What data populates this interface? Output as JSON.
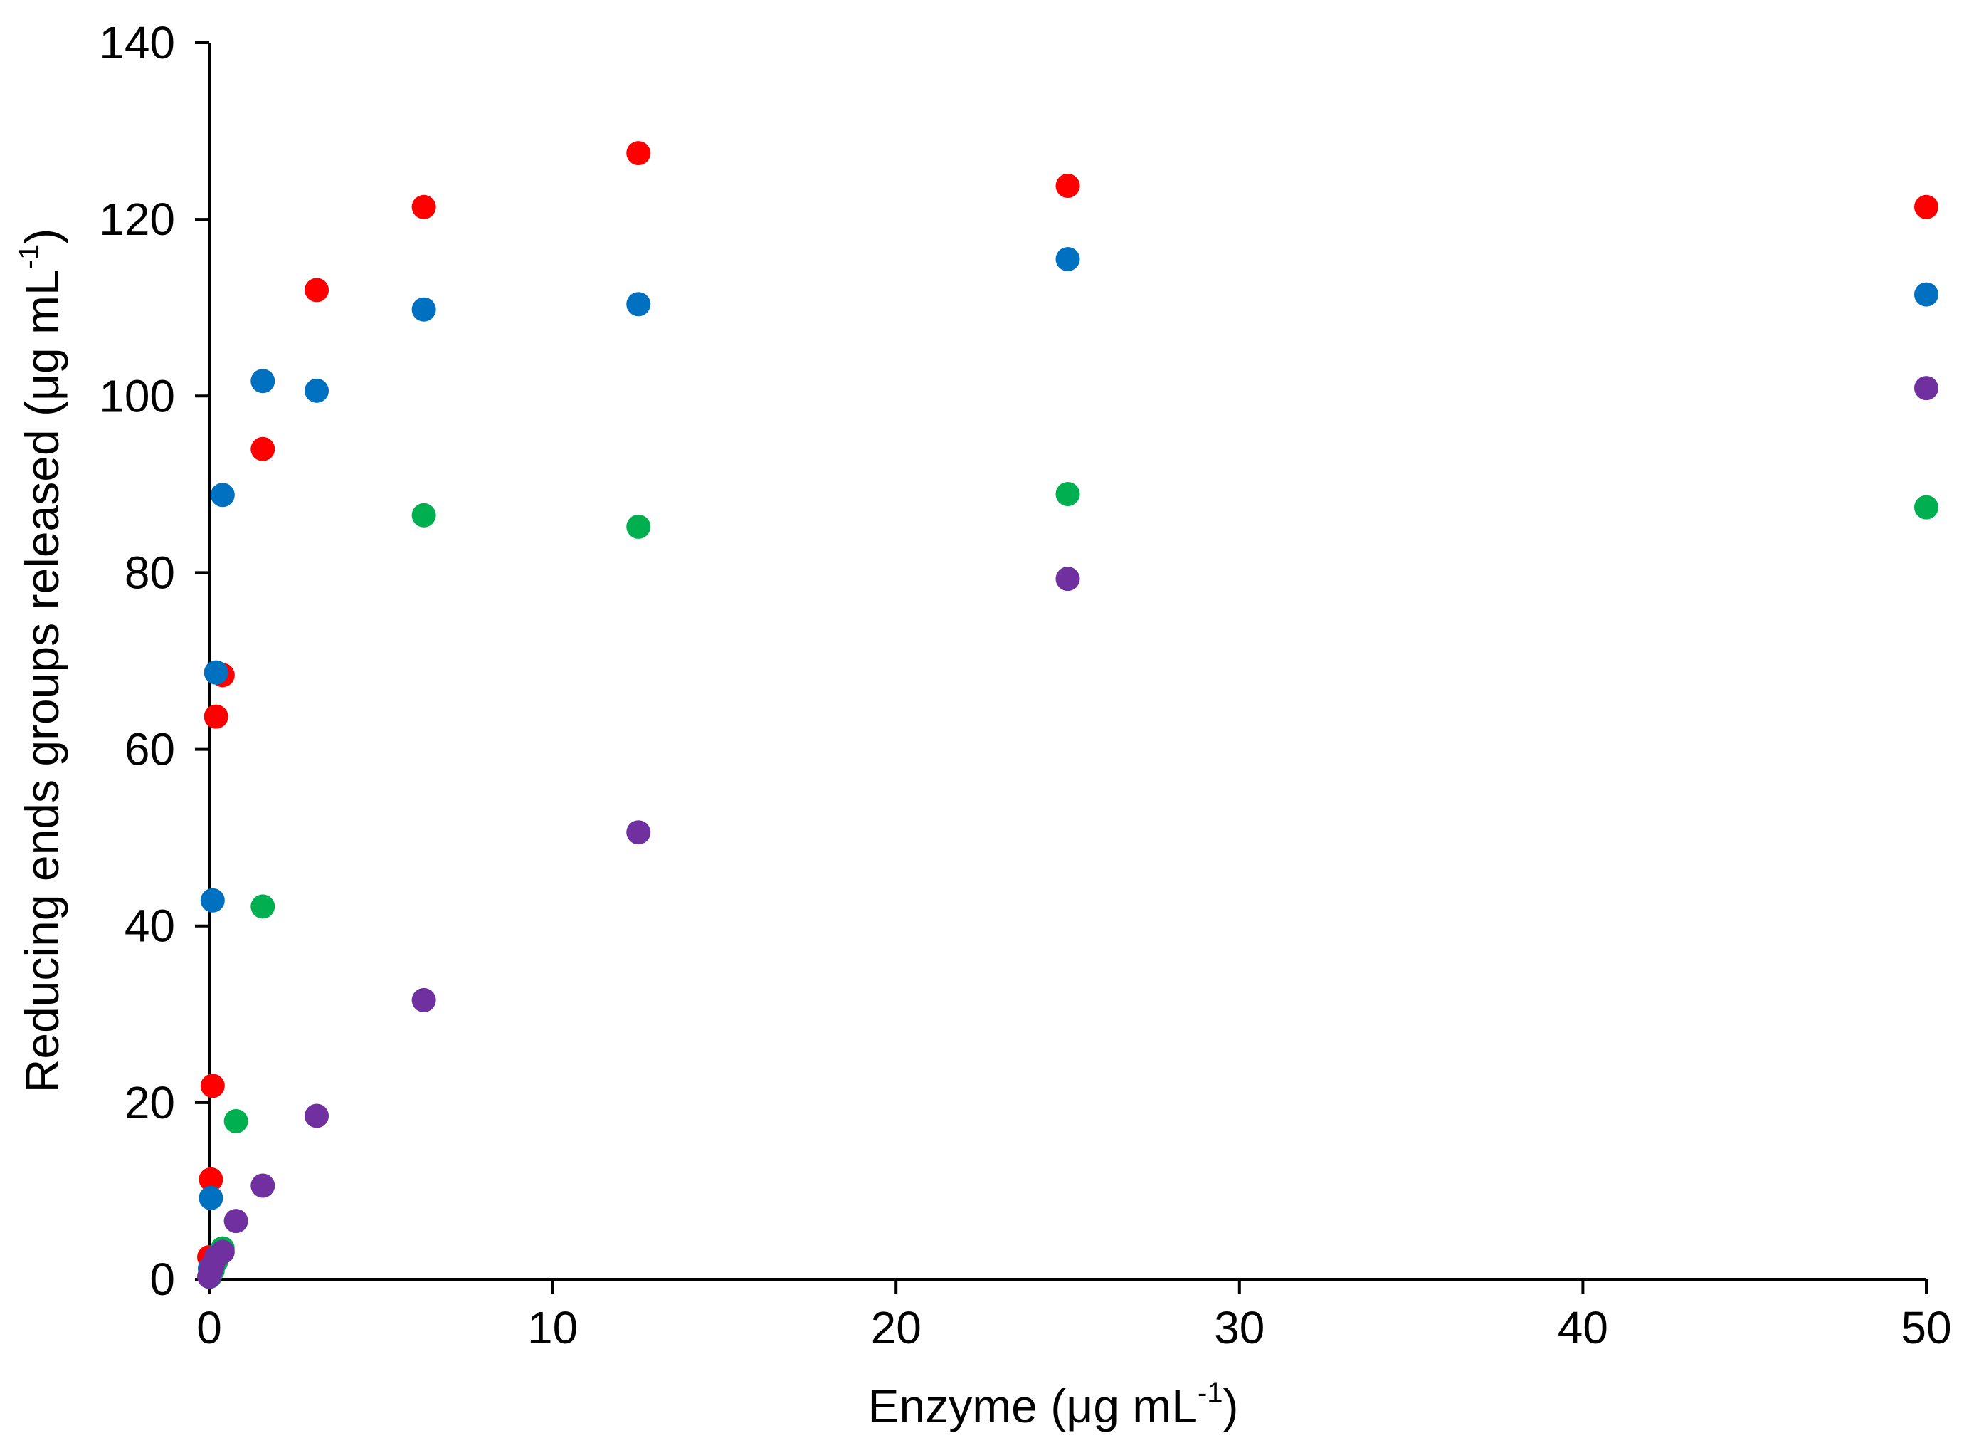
{
  "chart_data": {
    "type": "scatter",
    "title": "",
    "xlabel": {
      "before": "Enzyme (μg mL",
      "sup": "-1",
      "after": ")"
    },
    "ylabel": {
      "before": "Reducing ends groups released (μg mL",
      "sup": "-1",
      "after": ")"
    },
    "xlim": [
      0,
      50
    ],
    "ylim": [
      0,
      140
    ],
    "xticks": [
      0,
      10,
      20,
      30,
      40,
      50
    ],
    "yticks": [
      0,
      20,
      40,
      60,
      80,
      100,
      120,
      140
    ],
    "grid": false,
    "legend": "none",
    "series": [
      {
        "color": "#ff0000",
        "points": [
          {
            "x": 0.0,
            "y": 2.5
          },
          {
            "x": 0.05,
            "y": 11.3
          },
          {
            "x": 0.1,
            "y": 21.9
          },
          {
            "x": 0.2,
            "y": 63.7
          },
          {
            "x": 0.39,
            "y": 68.4
          },
          {
            "x": 1.56,
            "y": 94.0
          },
          {
            "x": 3.13,
            "y": 112.0
          },
          {
            "x": 6.25,
            "y": 121.4
          },
          {
            "x": 12.5,
            "y": 127.5
          },
          {
            "x": 25.0,
            "y": 123.8
          },
          {
            "x": 50.0,
            "y": 121.4
          }
        ]
      },
      {
        "color": "#0070c0",
        "points": [
          {
            "x": 0.02,
            "y": 1.2
          },
          {
            "x": 0.05,
            "y": 9.2
          },
          {
            "x": 0.1,
            "y": 42.9
          },
          {
            "x": 0.2,
            "y": 68.7
          },
          {
            "x": 0.39,
            "y": 88.8
          },
          {
            "x": 1.56,
            "y": 101.7
          },
          {
            "x": 3.13,
            "y": 100.6
          },
          {
            "x": 6.25,
            "y": 109.8
          },
          {
            "x": 12.5,
            "y": 110.4
          },
          {
            "x": 25.0,
            "y": 115.5
          },
          {
            "x": 50.0,
            "y": 111.5
          }
        ]
      },
      {
        "color": "#00b050",
        "points": [
          {
            "x": 0.02,
            "y": 0.3
          },
          {
            "x": 0.1,
            "y": 1.0
          },
          {
            "x": 0.2,
            "y": 2.0
          },
          {
            "x": 0.39,
            "y": 3.5
          },
          {
            "x": 0.78,
            "y": 17.9
          },
          {
            "x": 1.56,
            "y": 42.2
          },
          {
            "x": 6.25,
            "y": 86.5
          },
          {
            "x": 12.5,
            "y": 85.2
          },
          {
            "x": 25.0,
            "y": 88.9
          },
          {
            "x": 50.0,
            "y": 87.4
          }
        ]
      },
      {
        "color": "#7030a0",
        "points": [
          {
            "x": 0.0,
            "y": 0.3
          },
          {
            "x": 0.05,
            "y": 1.0
          },
          {
            "x": 0.1,
            "y": 1.6
          },
          {
            "x": 0.2,
            "y": 2.5
          },
          {
            "x": 0.39,
            "y": 3.1
          },
          {
            "x": 0.78,
            "y": 6.6
          },
          {
            "x": 1.56,
            "y": 10.6
          },
          {
            "x": 3.13,
            "y": 18.5
          },
          {
            "x": 6.25,
            "y": 31.6
          },
          {
            "x": 12.5,
            "y": 50.6
          },
          {
            "x": 25.0,
            "y": 79.3
          },
          {
            "x": 50.0,
            "y": 100.9
          }
        ]
      }
    ]
  }
}
